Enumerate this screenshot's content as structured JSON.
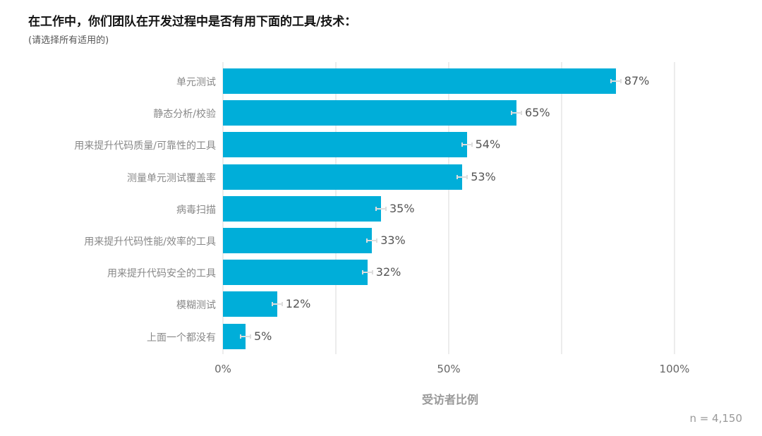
{
  "header": {
    "title": "在工作中，你们团队在开发过程中是否有用下面的工具/技术：",
    "subtitle": "(请选择所有适用的)"
  },
  "axis": {
    "ticks": [
      "0%",
      "50%",
      "100%"
    ],
    "xlabel": "受访者比例"
  },
  "footer": {
    "n_label": "n =  4,150"
  },
  "colors": {
    "bar": "#00aed9",
    "errorbar": "#dddddd",
    "grid": "#ececec"
  },
  "bars": [
    {
      "label": "单元测试",
      "value": 87,
      "text": "87%"
    },
    {
      "label": "静态分析/校验",
      "value": 65,
      "text": "65%"
    },
    {
      "label": "用来提升代码质量/可靠性的工具",
      "value": 54,
      "text": "54%"
    },
    {
      "label": "测量单元测试覆盖率",
      "value": 53,
      "text": "53%"
    },
    {
      "label": "病毒扫描",
      "value": 35,
      "text": "35%"
    },
    {
      "label": "用来提升代码性能/效率的工具",
      "value": 33,
      "text": "33%"
    },
    {
      "label": "用来提升代码安全的工具",
      "value": 32,
      "text": "32%"
    },
    {
      "label": "模糊测试",
      "value": 12,
      "text": "12%"
    },
    {
      "label": "上面一个都没有",
      "value": 5,
      "text": "5%"
    }
  ],
  "chart_data": {
    "type": "bar",
    "orientation": "horizontal",
    "title": "在工作中，你们团队在开发过程中是否有用下面的工具/技术：",
    "subtitle": "(请选择所有适用的)",
    "categories": [
      "单元测试",
      "静态分析/校验",
      "用来提升代码质量/可靠性的工具",
      "测量单元测试覆盖率",
      "病毒扫描",
      "用来提升代码性能/效率的工具",
      "用来提升代码安全的工具",
      "模糊测试",
      "上面一个都没有"
    ],
    "values": [
      87,
      65,
      54,
      53,
      35,
      33,
      32,
      12,
      5
    ],
    "xlabel": "受访者比例",
    "ylabel": "",
    "xlim": [
      0,
      100
    ],
    "xticks": [
      "0%",
      "50%",
      "100%"
    ],
    "grid": true,
    "error_bars": true,
    "annotation": "n = 4,150"
  }
}
